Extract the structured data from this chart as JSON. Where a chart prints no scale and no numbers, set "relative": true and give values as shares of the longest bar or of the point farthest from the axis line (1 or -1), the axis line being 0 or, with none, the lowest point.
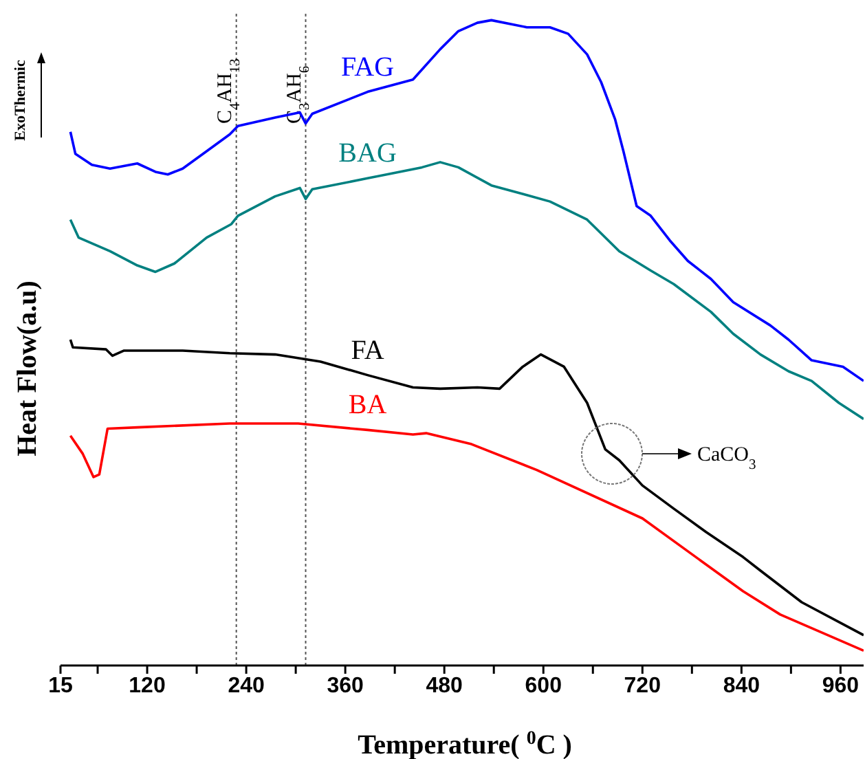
{
  "chart_data": {
    "type": "line",
    "relative": true,
    "xlabel": "Temperature( $^{0}$C )",
    "ylabel": "Heat Flow(a.u)",
    "annotations": [
      "ExoThermic",
      "CaCO$_{3}$"
    ],
    "xlim": [
      15,
      988
    ],
    "xticks": [
      15,
      {
        "value": 60,
        "label": null
      },
      120,
      {
        "value": 180,
        "label": null
      },
      240,
      {
        "value": 300,
        "label": null
      },
      360,
      {
        "value": 420,
        "label": null
      },
      480,
      {
        "value": 540,
        "label": null
      },
      600,
      {
        "value": 660,
        "label": null
      },
      720,
      {
        "value": 780,
        "label": null
      },
      840,
      {
        "value": 900,
        "label": null
      },
      960
    ],
    "ref_lines": [
      {
        "axis": "x",
        "value": 228,
        "label": "C$_{4}$AH$_{13}$",
        "color": "#555555",
        "line_style": "dotted"
      },
      {
        "axis": "x",
        "value": 312,
        "label": "C$_{3}$AH$_{6}$",
        "color": "#555555",
        "line_style": "dotted"
      }
    ],
    "series": [
      {
        "name": "FAG",
        "color": "#0000ff",
        "x": [
          27,
          33,
          53,
          75,
          108,
          130,
          145,
          163,
          192,
          220,
          230,
          275,
          305,
          312,
          320,
          387,
          442,
          475,
          497,
          520,
          537,
          580,
          608,
          630,
          653,
          670,
          687,
          697,
          713,
          730,
          753,
          775,
          803,
          830,
          875,
          897,
          925,
          963,
          988
        ],
        "values": [
          0.827,
          0.793,
          0.776,
          0.77,
          0.778,
          0.765,
          0.761,
          0.77,
          0.797,
          0.823,
          0.836,
          0.849,
          0.857,
          0.84,
          0.855,
          0.889,
          0.908,
          0.955,
          0.983,
          0.996,
          1,
          0.989,
          0.989,
          0.979,
          0.947,
          0.904,
          0.846,
          0.797,
          0.712,
          0.697,
          0.659,
          0.627,
          0.599,
          0.563,
          0.527,
          0.505,
          0.473,
          0.463,
          0.441
        ]
      },
      {
        "name": "BAG",
        "color": "#008080",
        "x": [
          27,
          37,
          75,
          108,
          130,
          153,
          192,
          222,
          230,
          275,
          305,
          312,
          320,
          387,
          453,
          475,
          497,
          537,
          580,
          608,
          653,
          692,
          730,
          758,
          803,
          830,
          863,
          897,
          925,
          958,
          988
        ],
        "values": [
          0.691,
          0.663,
          0.642,
          0.62,
          0.61,
          0.623,
          0.663,
          0.684,
          0.697,
          0.727,
          0.74,
          0.723,
          0.738,
          0.755,
          0.772,
          0.78,
          0.772,
          0.744,
          0.729,
          0.719,
          0.691,
          0.642,
          0.612,
          0.591,
          0.548,
          0.514,
          0.482,
          0.456,
          0.441,
          0.407,
          0.382
        ]
      },
      {
        "name": "FA",
        "color": "#000000",
        "x": [
          27,
          30,
          70,
          78,
          92,
          163,
          220,
          275,
          330,
          387,
          442,
          475,
          520,
          547,
          575,
          597,
          625,
          653,
          675,
          692,
          720,
          758,
          797,
          842,
          863,
          913,
          988
        ],
        "values": [
          0.505,
          0.493,
          0.49,
          0.48,
          0.488,
          0.488,
          0.484,
          0.482,
          0.471,
          0.45,
          0.431,
          0.429,
          0.431,
          0.429,
          0.463,
          0.482,
          0.463,
          0.407,
          0.335,
          0.318,
          0.279,
          0.243,
          0.207,
          0.168,
          0.147,
          0.098,
          0.047
        ]
      },
      {
        "name": "BA",
        "color": "#ff0000",
        "x": [
          27,
          42,
          55,
          62,
          72,
          108,
          220,
          303,
          387,
          442,
          458,
          513,
          592,
          720,
          842,
          887,
          988
        ],
        "values": [
          0.356,
          0.328,
          0.292,
          0.296,
          0.367,
          0.369,
          0.375,
          0.375,
          0.365,
          0.358,
          0.36,
          0.343,
          0.303,
          0.228,
          0.115,
          0.079,
          0.023
        ]
      }
    ]
  }
}
